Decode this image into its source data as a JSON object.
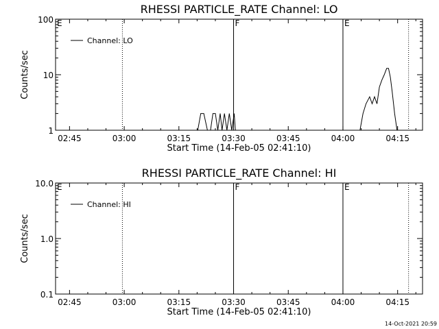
{
  "chart_data": [
    {
      "type": "line",
      "title": "RHESSI PARTICLE_RATE Channel: LO",
      "xlabel": "Start Time (14-Feb-05 02:41:10)",
      "ylabel": "Counts/sec",
      "yscale": "log",
      "xlim": [
        "02:41:10",
        "04:21:50"
      ],
      "ylim": [
        1,
        100
      ],
      "xticks": [
        "02:45",
        "03:00",
        "03:15",
        "03:30",
        "03:45",
        "04:00",
        "04:15"
      ],
      "yticks": [
        "1",
        "10",
        "100"
      ],
      "legend": {
        "position": "top-left",
        "entries": [
          "Channel: LO"
        ]
      },
      "markers": [
        {
          "label": "E",
          "time": "02:41:10",
          "style": "dotted"
        },
        {
          "time": "02:59:30",
          "style": "dotted"
        },
        {
          "label": "F",
          "time": "03:30:00",
          "style": "solid"
        },
        {
          "label": "E",
          "time": "04:00:00",
          "style": "solid"
        },
        {
          "time": "04:18:00",
          "style": "dotted"
        }
      ],
      "series": [
        {
          "name": "Channel: LO",
          "x": [
            "03:20:10",
            "03:21:00",
            "03:21:50",
            "03:22:50",
            "03:23:40",
            "03:24:20",
            "03:25:00",
            "03:25:40",
            "03:26:20",
            "03:26:50",
            "03:27:30",
            "03:28:10",
            "03:28:50",
            "03:29:30",
            "03:30:10",
            "03:30:30",
            "04:04:40",
            "04:05:30",
            "04:06:20",
            "04:07:20",
            "04:08:00",
            "04:08:40",
            "04:09:20",
            "04:10:00",
            "04:10:40",
            "04:11:20",
            "04:12:00",
            "04:12:30",
            "04:13:00",
            "04:13:30",
            "04:14:10",
            "04:14:50"
          ],
          "y": [
            1,
            2,
            2,
            1,
            1,
            2,
            2,
            1,
            2,
            1,
            2,
            1,
            2,
            1,
            2,
            1,
            1,
            2,
            3,
            4,
            3,
            4,
            3,
            6,
            8,
            10,
            13,
            13,
            9,
            5,
            2,
            1
          ]
        }
      ]
    },
    {
      "type": "line",
      "title": "RHESSI PARTICLE_RATE Channel: HI",
      "xlabel": "Start Time (14-Feb-05 02:41:10)",
      "ylabel": "Counts/sec",
      "yscale": "log",
      "xlim": [
        "02:41:10",
        "04:21:50"
      ],
      "ylim": [
        0.1,
        10
      ],
      "xticks": [
        "02:45",
        "03:00",
        "03:15",
        "03:30",
        "03:45",
        "04:00",
        "04:15"
      ],
      "yticks": [
        "0.1",
        "1.0",
        "10.0"
      ],
      "legend": {
        "position": "top-left",
        "entries": [
          "Channel: HI"
        ]
      },
      "markers": [
        {
          "label": "E",
          "time": "02:41:10",
          "style": "dotted"
        },
        {
          "time": "02:59:30",
          "style": "dotted"
        },
        {
          "label": "F",
          "time": "03:30:00",
          "style": "solid"
        },
        {
          "label": "E",
          "time": "04:00:00",
          "style": "solid"
        },
        {
          "time": "04:18:00",
          "style": "dotted"
        }
      ],
      "series": [
        {
          "name": "Channel: HI",
          "x": [],
          "y": []
        }
      ]
    }
  ],
  "footer": {
    "timestamp": "14-Oct-2021 20:59"
  }
}
